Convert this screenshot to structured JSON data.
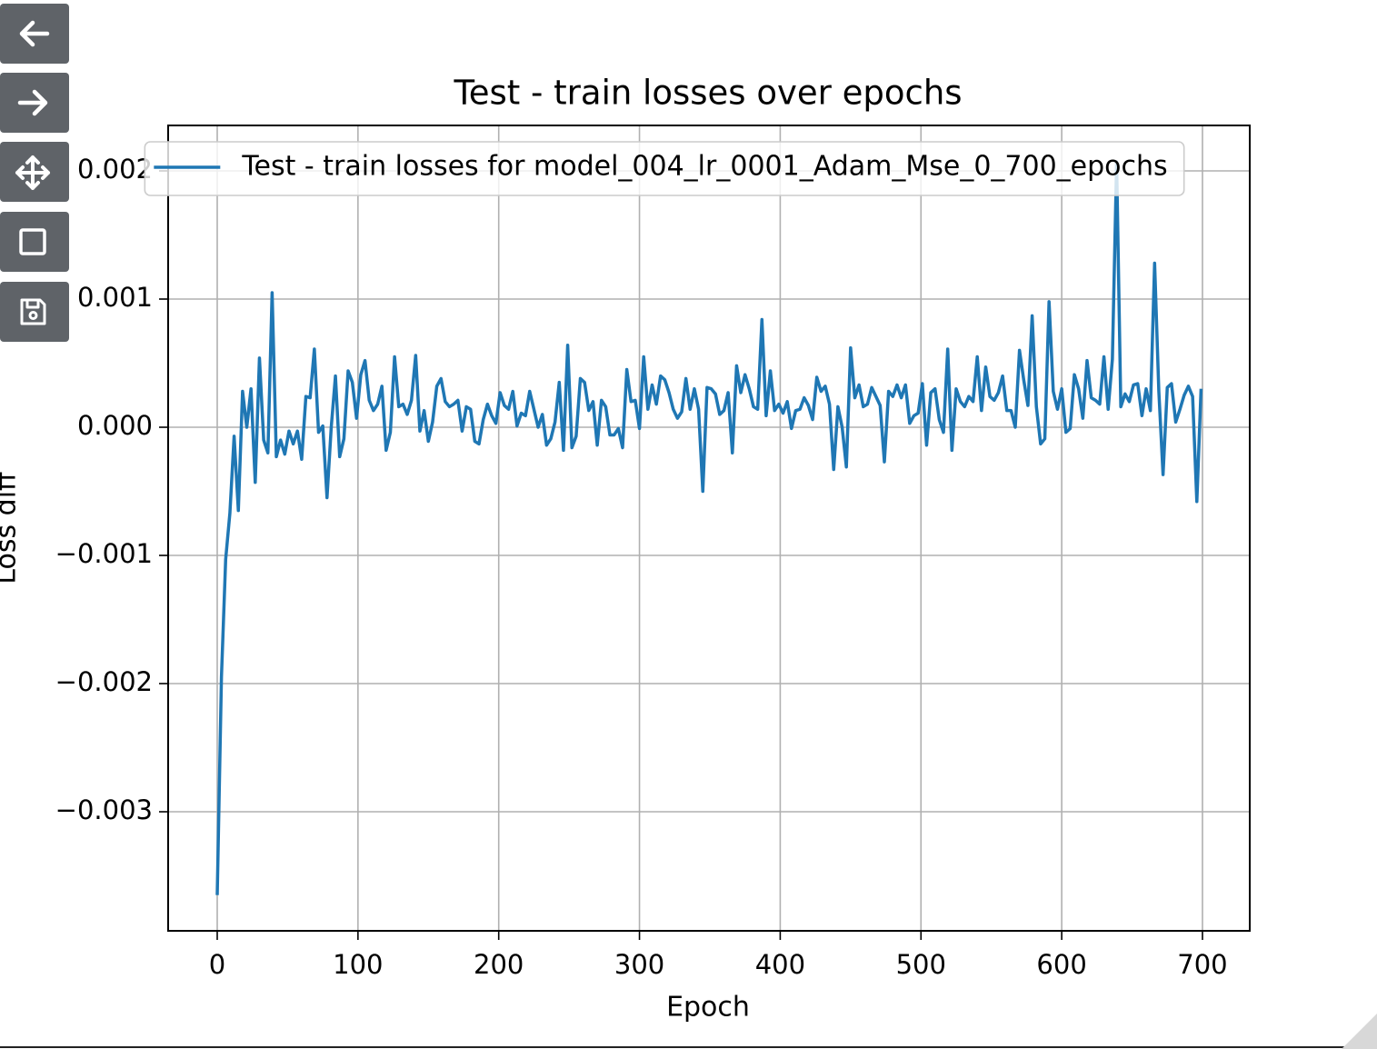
{
  "chart_data": {
    "type": "line",
    "title": "Test - train losses over epochs",
    "x_label": "Epoch",
    "y_label": "Loss diff",
    "x": [
      0,
      3,
      6,
      9,
      12,
      15,
      18,
      21,
      24,
      27,
      30,
      33,
      36,
      39,
      42,
      45,
      48,
      51,
      54,
      57,
      60,
      63,
      66,
      69,
      72,
      75,
      78,
      81,
      84,
      87,
      90,
      93,
      96,
      99,
      102,
      105,
      108,
      111,
      114,
      117,
      120,
      123,
      126,
      129,
      132,
      135,
      138,
      141,
      144,
      147,
      150,
      153,
      156,
      159,
      162,
      165,
      168,
      171,
      174,
      177,
      180,
      183,
      186,
      189,
      192,
      195,
      198,
      201,
      204,
      207,
      210,
      213,
      216,
      219,
      222,
      225,
      228,
      231,
      234,
      237,
      240,
      243,
      246,
      249,
      252,
      255,
      258,
      261,
      264,
      267,
      270,
      273,
      276,
      279,
      282,
      285,
      288,
      291,
      294,
      297,
      300,
      303,
      306,
      309,
      312,
      315,
      318,
      321,
      324,
      327,
      330,
      333,
      336,
      339,
      342,
      345,
      348,
      351,
      354,
      357,
      360,
      363,
      366,
      369,
      372,
      375,
      378,
      381,
      384,
      387,
      390,
      393,
      396,
      399,
      402,
      405,
      408,
      411,
      414,
      417,
      420,
      423,
      426,
      429,
      432,
      435,
      438,
      441,
      444,
      447,
      450,
      453,
      456,
      459,
      462,
      465,
      468,
      471,
      474,
      477,
      480,
      483,
      486,
      489,
      492,
      495,
      498,
      501,
      504,
      507,
      510,
      513,
      516,
      519,
      522,
      525,
      528,
      531,
      534,
      537,
      540,
      543,
      546,
      549,
      552,
      555,
      558,
      561,
      564,
      567,
      570,
      573,
      576,
      579,
      582,
      585,
      588,
      591,
      594,
      597,
      600,
      603,
      606,
      609,
      612,
      615,
      618,
      621,
      624,
      627,
      630,
      633,
      636,
      639,
      642,
      645,
      648,
      651,
      654,
      657,
      660,
      663,
      666,
      669,
      672,
      675,
      678,
      681,
      684,
      687,
      690,
      693,
      696,
      699
    ],
    "series": [
      {
        "name": "Test - train losses for model_004_lr_0001_Adam_Mse_0_700_epochs",
        "color": "#1f77b4",
        "values": [
          -0.00365,
          -0.00195,
          -0.00103,
          -0.00067,
          -7e-05,
          -0.00065,
          0.00028,
          0.0,
          0.0003,
          -0.00043,
          0.00054,
          -0.0001,
          -0.0002,
          0.00105,
          -0.00023,
          -0.0001,
          -0.00021,
          -3e-05,
          -0.00013,
          -3e-05,
          -0.00025,
          0.00024,
          0.00023,
          0.00061,
          -4e-05,
          1e-05,
          -0.00055,
          0.0,
          0.0004,
          -0.00023,
          -9e-05,
          0.00044,
          0.00035,
          7e-05,
          0.00041,
          0.00052,
          0.00021,
          0.00013,
          0.00018,
          0.00032,
          -0.00018,
          -4e-05,
          0.00055,
          0.00016,
          0.00018,
          0.0001,
          0.00021,
          0.00056,
          -3e-05,
          0.00013,
          -0.00011,
          4e-05,
          0.00032,
          0.00038,
          0.0002,
          0.00016,
          0.00018,
          0.00021,
          -3e-05,
          0.00016,
          0.00014,
          -0.00011,
          -0.00013,
          6e-05,
          0.00018,
          9e-05,
          3e-05,
          0.00027,
          0.00017,
          0.00014,
          0.00028,
          1e-05,
          0.00011,
          9e-05,
          0.00028,
          0.00014,
          0.0,
          0.0001,
          -0.00014,
          -9e-05,
          4e-05,
          0.00035,
          -0.00018,
          0.00064,
          -0.00016,
          -7e-05,
          0.00038,
          0.00035,
          0.00013,
          0.0002,
          -0.00014,
          0.00021,
          0.00016,
          -6e-05,
          -6e-05,
          -1e-05,
          -0.00016,
          0.00045,
          0.0002,
          0.00021,
          -1e-05,
          0.00055,
          0.00014,
          0.00033,
          0.00018,
          0.0004,
          0.00037,
          0.00027,
          0.00014,
          7e-05,
          0.00012,
          0.00038,
          0.00014,
          0.0003,
          0.00014,
          -0.0005,
          0.00031,
          0.0003,
          0.00026,
          0.0001,
          0.00013,
          0.00027,
          -0.0002,
          0.00048,
          0.00027,
          0.00041,
          0.0003,
          0.00016,
          0.00014,
          0.00084,
          9e-05,
          0.00044,
          0.00013,
          0.00018,
          0.00011,
          0.0002,
          -1e-05,
          0.00013,
          0.00014,
          0.00023,
          0.00017,
          6e-05,
          0.00039,
          0.00028,
          0.00032,
          0.00018,
          -0.00033,
          0.00016,
          0.0,
          -0.00031,
          0.00062,
          0.00023,
          0.00033,
          0.00016,
          0.00018,
          0.00031,
          0.00024,
          0.00017,
          -0.00027,
          0.00028,
          0.00024,
          0.00033,
          0.00023,
          0.00033,
          3e-05,
          9e-05,
          0.00011,
          0.00034,
          -0.00014,
          0.00027,
          0.0003,
          6e-05,
          -4e-05,
          0.00061,
          -0.00018,
          0.0003,
          0.0002,
          0.00016,
          0.00024,
          0.0002,
          0.00055,
          0.00013,
          0.00047,
          0.00024,
          0.00021,
          0.00027,
          0.0004,
          0.00013,
          0.00013,
          0.0,
          0.0006,
          0.00037,
          0.00017,
          0.00087,
          0.00016,
          -0.00013,
          -9e-05,
          0.00098,
          0.00028,
          0.00014,
          0.0003,
          -4e-05,
          -1e-05,
          0.00041,
          0.0003,
          7e-05,
          0.00052,
          0.00023,
          0.00021,
          0.00018,
          0.00055,
          0.00014,
          0.00053,
          0.00207,
          0.00016,
          0.00026,
          0.0002,
          0.00033,
          0.00034,
          9e-05,
          0.0003,
          0.00013,
          0.00128,
          0.00028,
          -0.00037,
          0.00031,
          0.00034,
          4e-05,
          0.00014,
          0.00025,
          0.00032,
          0.00024,
          -0.00058,
          0.0003
        ]
      }
    ],
    "xlim": [
      -34.87,
      733.6
    ],
    "ylim": [
      -0.003929,
      0.0023546
    ],
    "xticks": [
      0,
      100,
      200,
      300,
      400,
      500,
      600,
      700
    ],
    "yticks": [
      {
        "value": -0.003,
        "label": "−0.003"
      },
      {
        "value": -0.002,
        "label": "−0.002"
      },
      {
        "value": -0.001,
        "label": "−0.001"
      },
      {
        "value": 0,
        "label": "0.000"
      },
      0.001,
      0.002
    ],
    "grid": true,
    "legend_loc": "upper center"
  }
}
